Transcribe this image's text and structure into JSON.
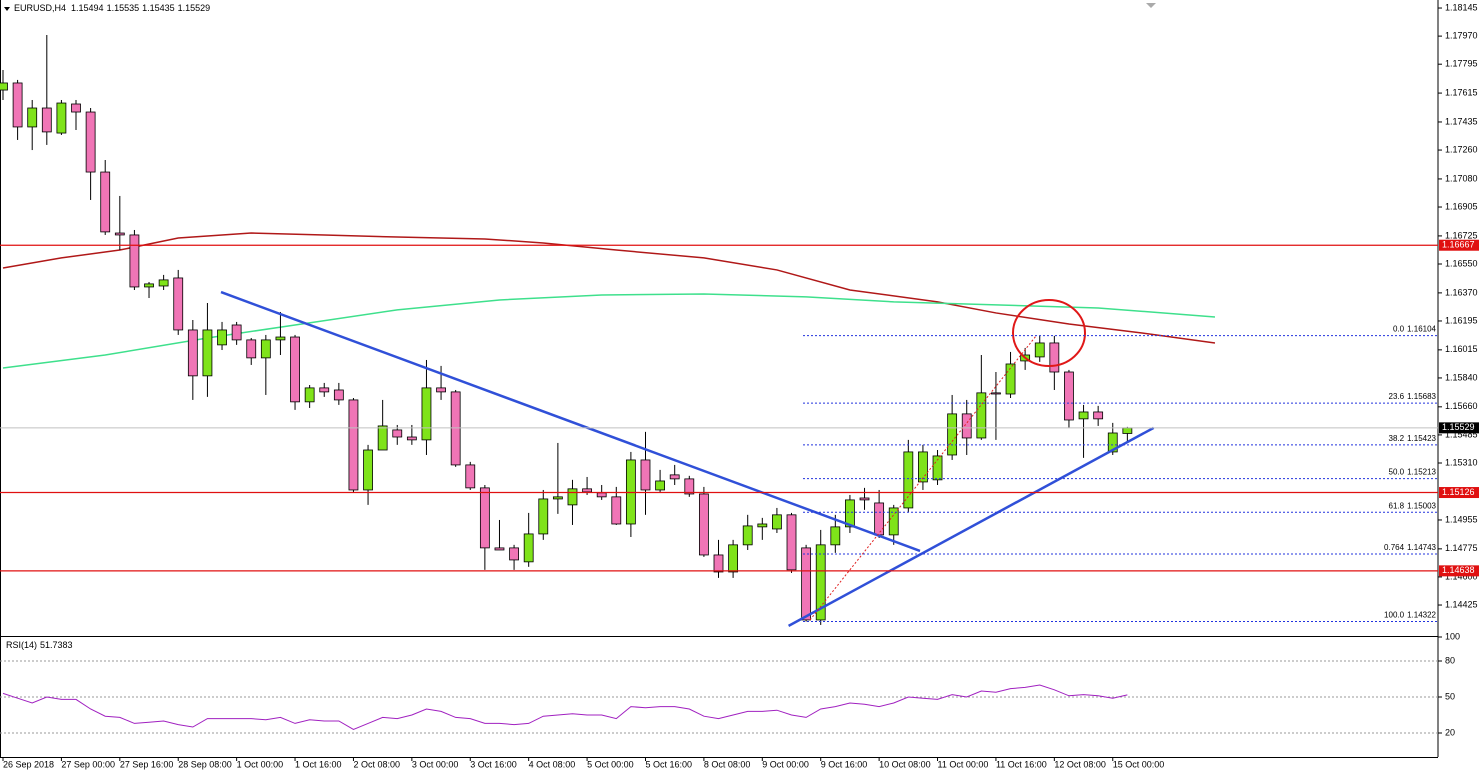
{
  "chart_data": {
    "type": "candlestick",
    "symbol": "EURUSD,H4",
    "up_color": "#7fe31a",
    "down_color": "#f075b6",
    "categories": [
      "26 Sep 2018",
      null,
      null,
      null,
      "27 Sep 00:00",
      null,
      null,
      null,
      "27 Sep 16:00",
      null,
      null,
      null,
      "28 Sep 08:00",
      null,
      null,
      null,
      "1 Oct 00:00",
      null,
      null,
      null,
      "1 Oct 16:00",
      null,
      null,
      null,
      "2 Oct 08:00",
      null,
      null,
      null,
      "3 Oct 00:00",
      null,
      null,
      null,
      "3 Oct 16:00",
      null,
      null,
      null,
      "4 Oct 08:00",
      null,
      null,
      null,
      "5 Oct 00:00",
      null,
      null,
      null,
      "5 Oct 16:00",
      null,
      null,
      null,
      "8 Oct 08:00",
      null,
      null,
      null,
      "9 Oct 00:00",
      null,
      null,
      null,
      "9 Oct 16:00",
      null,
      null,
      null,
      "10 Oct 08:00",
      null,
      null,
      null,
      "11 Oct 00:00",
      null,
      null,
      null,
      "11 Oct 16:00",
      null,
      null,
      null,
      "12 Oct 08:00",
      null,
      null,
      null,
      "15 Oct 00:00",
      null
    ],
    "open": [
      1.17634,
      1.17678,
      1.17404,
      1.17522,
      1.17366,
      1.17547,
      1.17497,
      1.17123,
      1.16743,
      1.16731,
      1.16407,
      1.16413,
      1.16463,
      1.16139,
      1.15853,
      1.16046,
      1.1617,
      1.16077,
      1.15965,
      1.16077,
      1.16095,
      1.15691,
      1.15778,
      1.15765,
      1.15703,
      1.15142,
      1.15391,
      1.15516,
      1.15472,
      1.15454,
      1.15778,
      1.15753,
      1.15298,
      1.15155,
      1.14781,
      1.14781,
      1.14694,
      1.14868,
      1.15086,
      1.15049,
      1.15149,
      1.15124,
      1.15099,
      1.1493,
      1.15329,
      1.15142,
      1.15236,
      1.15211,
      1.15117,
      1.14737,
      1.14631,
      1.148,
      1.14912,
      1.14899,
      1.14987,
      1.14781,
      1.14332,
      1.148,
      1.14912,
      1.15092,
      1.15061,
      1.14862,
      1.1503,
      1.15192,
      1.15205,
      1.1536,
      1.15616,
      1.15466,
      1.15747,
      1.1574,
      1.15946,
      1.15971,
      1.16058,
      1.15877,
      1.15585,
      1.15628,
      1.15379,
      1.15494
    ],
    "high": [
      1.17759,
      1.17697,
      1.17572,
      1.17977,
      1.17572,
      1.17572,
      1.17522,
      1.17198,
      1.16974,
      1.16762,
      1.16438,
      1.16482,
      1.16513,
      1.16201,
      1.16307,
      1.16189,
      1.16189,
      1.16089,
      1.16108,
      1.16251,
      1.16108,
      1.15796,
      1.15809,
      1.15809,
      1.15715,
      1.15423,
      1.15703,
      1.15547,
      1.15547,
      1.15952,
      1.15915,
      1.15765,
      1.15317,
      1.15173,
      1.14955,
      1.148,
      1.14999,
      1.15142,
      1.15435,
      1.15205,
      1.15223,
      1.15173,
      1.15161,
      1.15379,
      1.15504,
      1.15267,
      1.15298,
      1.1523,
      1.15161,
      1.14831,
      1.14831,
      1.14987,
      1.14968,
      1.1503,
      1.14999,
      1.148,
      1.14893,
      1.14987,
      1.15111,
      1.15155,
      1.15142,
      1.15049,
      1.15454,
      1.15423,
      1.15391,
      1.15734,
      1.15703,
      1.15983,
      1.15877,
      1.16002,
      1.16027,
      1.16104,
      1.16102,
      1.1589,
      1.15672,
      1.15666,
      1.1556,
      1.15535
    ],
    "low": [
      1.17572,
      1.17323,
      1.1726,
      1.17292,
      1.17354,
      1.17385,
      1.16949,
      1.16731,
      1.16637,
      1.16388,
      1.16338,
      1.16388,
      1.16108,
      1.15703,
      1.15722,
      1.16014,
      1.16046,
      1.15921,
      1.15734,
      1.15983,
      1.15641,
      1.15653,
      1.15722,
      1.15672,
      1.15124,
      1.15049,
      1.15391,
      1.15423,
      1.15423,
      1.1536,
      1.15703,
      1.15286,
      1.15142,
      1.14644,
      1.14768,
      1.14644,
      1.14663,
      1.14831,
      1.14993,
      1.14924,
      1.15111,
      1.1508,
      1.14924,
      1.14849,
      1.14987,
      1.15124,
      1.15173,
      1.15099,
      1.14725,
      1.14594,
      1.14594,
      1.14768,
      1.14831,
      1.14874,
      1.14625,
      1.14322,
      1.14301,
      1.1475,
      1.14874,
      1.15018,
      1.14843,
      1.148,
      1.15005,
      1.15142,
      1.15173,
      1.15329,
      1.1536,
      1.15454,
      1.15454,
      1.15715,
      1.1589,
      1.1594,
      1.15765,
      1.15529,
      1.15342,
      1.15541,
      1.1536,
      1.15435
    ],
    "close": [
      1.17678,
      1.17404,
      1.17522,
      1.17373,
      1.17553,
      1.17497,
      1.17123,
      1.1675,
      1.16731,
      1.16407,
      1.16426,
      1.16451,
      1.16139,
      1.15853,
      1.16139,
      1.16139,
      1.16077,
      1.15965,
      1.16077,
      1.16095,
      1.15691,
      1.15778,
      1.15753,
      1.15703,
      1.15142,
      1.15391,
      1.15541,
      1.15472,
      1.15454,
      1.15778,
      1.15753,
      1.15298,
      1.15155,
      1.14781,
      1.14768,
      1.14706,
      1.14868,
      1.15086,
      1.15099,
      1.15149,
      1.1513,
      1.15099,
      1.1493,
      1.15329,
      1.15142,
      1.15198,
      1.15211,
      1.15117,
      1.14737,
      1.14631,
      1.148,
      1.14918,
      1.1493,
      1.14987,
      1.14644,
      1.14332,
      1.148,
      1.14912,
      1.1508,
      1.1508,
      1.14862,
      1.1503,
      1.15379,
      1.15379,
      1.15354,
      1.15616,
      1.15466,
      1.15747,
      1.1574,
      1.15927,
      1.15983,
      1.16058,
      1.15877,
      1.15578,
      1.15628,
      1.15585,
      1.15497,
      1.15529
    ],
    "xlim": [
      0,
      98
    ],
    "ylim": [
      1.14232,
      1.18195
    ],
    "yticks": [
      1.18145,
      {
        "value": 1.1797,
        "label": "1.17970"
      },
      1.17795,
      1.17615,
      1.17435,
      {
        "value": 1.1726,
        "label": "1.17260"
      },
      {
        "value": 1.1708,
        "label": "1.17080"
      },
      1.16905,
      1.16725,
      {
        "value": 1.1655,
        "label": "1.16550"
      },
      {
        "value": 1.1637,
        "label": "1.16370"
      },
      1.16195,
      1.16015,
      {
        "value": 1.1584,
        "label": "1.15840"
      },
      {
        "value": 1.1566,
        "label": "1.15660"
      },
      1.15485,
      {
        "value": 1.1531,
        "label": "1.15310"
      },
      1.14955,
      1.14775,
      {
        "value": 1.146,
        "label": "1.14600"
      },
      1.14425
    ],
    "moving_averages": [
      {
        "color": "#b01818",
        "x": [
          0,
          4,
          8,
          12,
          17,
          22,
          27,
          33,
          37,
          42,
          48,
          53,
          58,
          64,
          68,
          73,
          78,
          83
        ],
        "values": [
          1.16525,
          1.16588,
          1.16637,
          1.16712,
          1.16743,
          1.16731,
          1.16718,
          1.16706,
          1.16681,
          1.16637,
          1.16588,
          1.16513,
          1.16388,
          1.16314,
          1.16245,
          1.16176,
          1.1612,
          1.16058
        ]
      },
      {
        "color": "#3ee08c",
        "x": [
          0,
          7,
          14,
          20,
          27,
          34,
          41,
          48,
          55,
          61,
          68,
          75,
          83
        ],
        "values": [
          1.15902,
          1.15983,
          1.16089,
          1.1617,
          1.16264,
          1.16326,
          1.16357,
          1.16363,
          1.16345,
          1.16314,
          1.16295,
          1.16276,
          1.1622
        ]
      }
    ],
    "levels": [
      {
        "value": 1.16667,
        "color": "#e01010"
      },
      {
        "value": 1.15126,
        "color": "#e01010"
      },
      {
        "value": 1.14638,
        "color": "#e01010"
      }
    ],
    "fib": {
      "color": "#2233dd",
      "levels": [
        {
          "ratio": "0.0",
          "value": 1.16104
        },
        {
          "ratio": "23.6",
          "value": 1.15683
        },
        {
          "ratio": "38.2",
          "value": 1.15423
        },
        {
          "ratio": "50.0",
          "value": 1.15213
        },
        {
          "ratio": "61.8",
          "value": 1.15003
        },
        {
          "ratio": "0.764",
          "value": 1.14743
        },
        {
          "ratio": "100.0",
          "value": 1.14322
        }
      ]
    },
    "trendlines": [
      {
        "color": "#3050d8",
        "x": [
          14.93,
          62.8
        ],
        "y": [
          1.16375,
          1.14762
        ]
      },
      {
        "color": "#3050d8",
        "x": [
          53.8,
          78.8
        ],
        "y": [
          1.14295,
          1.15529
        ]
      }
    ],
    "rsi": {
      "name": "RSI(14)",
      "color": "#a020c0",
      "ylim": [
        0,
        100
      ],
      "yticks": [
        100,
        80,
        50,
        20
      ],
      "values": [
        53,
        49,
        45,
        50,
        48,
        48,
        40,
        34,
        33,
        28,
        29,
        30,
        27,
        25,
        32,
        32,
        32,
        32,
        31,
        33,
        28,
        31,
        30,
        30,
        23,
        28,
        33,
        32,
        35,
        40,
        38,
        33,
        32,
        28,
        28,
        27,
        28,
        34,
        35,
        36,
        35,
        35,
        32,
        42,
        41,
        42,
        42,
        40,
        34,
        32,
        35,
        38,
        38,
        39,
        35,
        33,
        40,
        42,
        45,
        44,
        42,
        45,
        50,
        49,
        48,
        52,
        50,
        55,
        54,
        57,
        58,
        60,
        56,
        51,
        52,
        51,
        49,
        51.7383
      ]
    }
  }
}
